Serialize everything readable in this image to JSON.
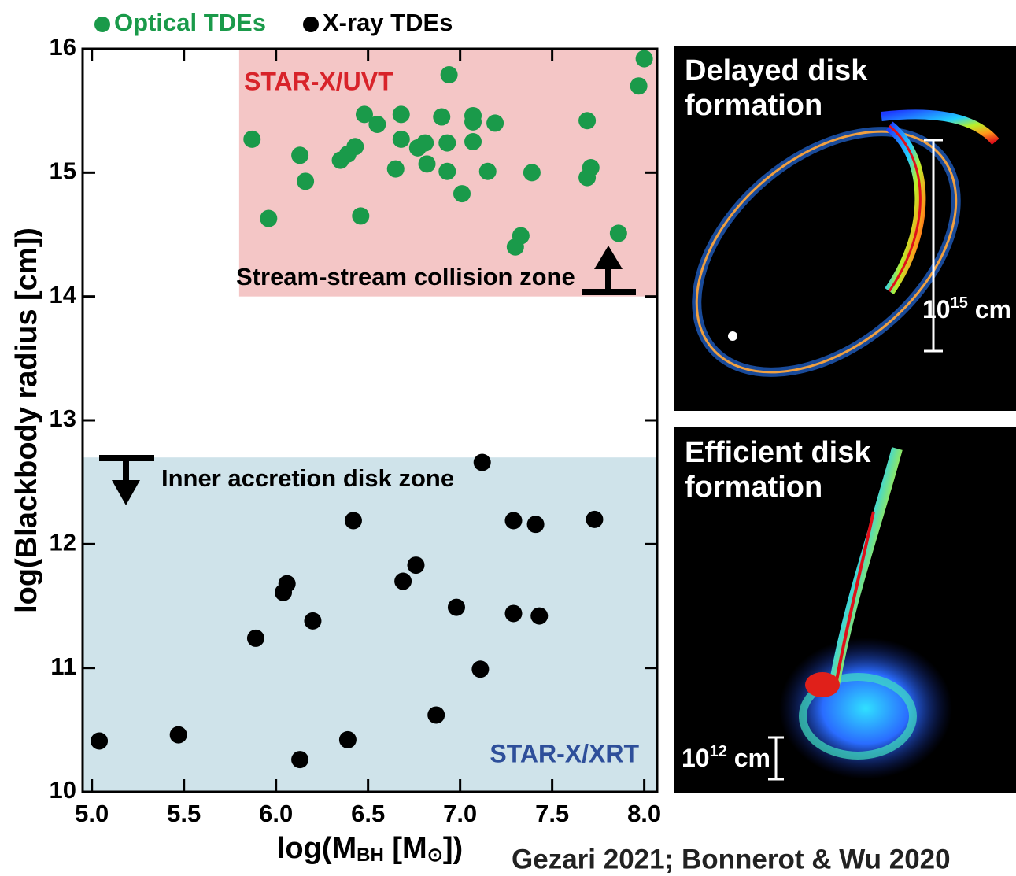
{
  "chart_data": {
    "type": "scatter",
    "xlabel_parts": [
      "log(M",
      "BH",
      " [M",
      "⊙",
      "])"
    ],
    "ylabel": "log(Blackbody radius [cm])",
    "xlim": [
      4.95,
      8.07
    ],
    "ylim": [
      10,
      16
    ],
    "xticks": [
      {
        "value": 5,
        "label": "5.0"
      },
      {
        "value": 5.5,
        "label": "5.5"
      },
      {
        "value": 6,
        "label": "6.0"
      },
      {
        "value": 6.5,
        "label": "6.5"
      },
      {
        "value": 7,
        "label": "7.0"
      },
      {
        "value": 7.5,
        "label": "7.5"
      },
      {
        "value": 8,
        "label": "8.0"
      }
    ],
    "yticks": [
      10,
      11,
      12,
      13,
      14,
      15,
      16
    ],
    "legend": "top",
    "regions": [
      {
        "label": "STAR-X/UVT",
        "color": "#f4c6c6",
        "label_color": "#d8232a",
        "x": [
          5.8,
          8.07
        ],
        "y": [
          14,
          16
        ]
      },
      {
        "label": "STAR-X/XRT",
        "color": "#cfe3ea",
        "label_color": "#2e4f9a",
        "x": [
          4.95,
          8.07
        ],
        "y": [
          10,
          12.7
        ]
      }
    ],
    "annotations": [
      "Stream-stream collision zone",
      "Inner accretion disk zone"
    ],
    "series": [
      {
        "name": "Optical TDEs",
        "color": "#1a9a4a",
        "x": [
          5.87,
          5.96,
          6.13,
          6.16,
          6.35,
          6.39,
          6.43,
          6.46,
          6.48,
          6.55,
          6.65,
          6.68,
          6.68,
          6.77,
          6.81,
          6.82,
          6.9,
          6.93,
          6.93,
          6.94,
          7.01,
          7.07,
          7.07,
          7.07,
          7.15,
          7.19,
          7.3,
          7.33,
          7.39,
          7.69,
          7.69,
          7.71,
          7.86,
          7.97,
          8.0
        ],
        "values": [
          15.27,
          14.63,
          15.14,
          14.93,
          15.1,
          15.15,
          15.21,
          14.65,
          15.47,
          15.39,
          15.03,
          15.47,
          15.27,
          15.2,
          15.24,
          15.07,
          15.45,
          15.24,
          15.01,
          15.79,
          14.83,
          15.46,
          15.41,
          15.25,
          15.01,
          15.4,
          14.4,
          14.49,
          15.0,
          14.96,
          15.42,
          15.04,
          14.51,
          15.7,
          15.92
        ]
      },
      {
        "name": "X-ray TDEs",
        "color": "#000000",
        "x": [
          5.04,
          5.47,
          5.89,
          6.04,
          6.06,
          6.13,
          6.2,
          6.39,
          6.42,
          6.69,
          6.76,
          6.87,
          6.98,
          7.11,
          7.12,
          7.29,
          7.29,
          7.41,
          7.43,
          7.73
        ],
        "values": [
          10.41,
          10.46,
          11.24,
          11.61,
          11.68,
          10.26,
          11.38,
          10.42,
          12.19,
          11.7,
          11.83,
          10.62,
          11.49,
          10.99,
          12.66,
          12.19,
          11.44,
          12.16,
          11.42,
          12.2
        ]
      }
    ]
  },
  "panels": [
    {
      "title_lines": [
        "Delayed disk",
        "formation"
      ],
      "scale": [
        "10",
        "15",
        " cm"
      ]
    },
    {
      "title_lines": [
        "Efficient disk",
        "formation"
      ],
      "scale": [
        "10",
        "12",
        " cm"
      ]
    }
  ],
  "credit": "Gezari 2021; Bonnerot & Wu 2020"
}
